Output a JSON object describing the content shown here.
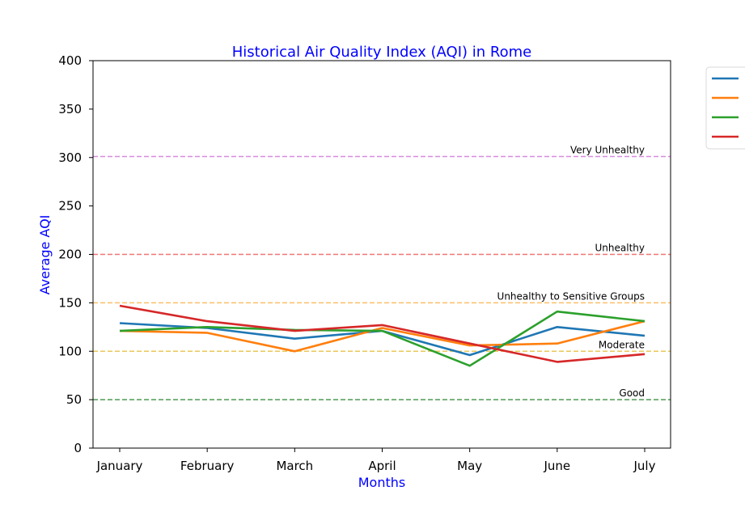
{
  "chart_data": {
    "type": "line",
    "title": "Historical Air Quality Index (AQI) in Rome",
    "xlabel": "Months",
    "ylabel": "Average AQI",
    "categories": [
      "January",
      "February",
      "March",
      "April",
      "May",
      "June",
      "July"
    ],
    "ylim": [
      0,
      400
    ],
    "yticks": [
      0,
      50,
      100,
      150,
      200,
      250,
      300,
      350,
      400
    ],
    "grid": false,
    "legend_position": "upper-right, outside plot",
    "text_color": "#0000ff",
    "series": [
      {
        "color": "#1f77b4",
        "values": [
          129,
          124,
          113,
          121,
          96,
          125,
          116
        ]
      },
      {
        "color": "#ff7f0e",
        "values": [
          121,
          119,
          100,
          124,
          106,
          108,
          131
        ]
      },
      {
        "color": "#2ca02c",
        "values": [
          121,
          125,
          122,
          121,
          85,
          141,
          131
        ]
      },
      {
        "color": "#d62728",
        "values": [
          147,
          131,
          121,
          127,
          108,
          89,
          97
        ]
      }
    ],
    "thresholds": [
      {
        "label": "Good",
        "value": 50,
        "color": "#4f9a55"
      },
      {
        "label": "Moderate",
        "value": 100,
        "color": "#e8c95a"
      },
      {
        "label": "Unhealthy to Sensitive Groups",
        "value": 150,
        "color": "#fbbf6a"
      },
      {
        "label": "Unhealthy",
        "value": 200,
        "color": "#f07575"
      },
      {
        "label": "Very Unhealthy",
        "value": 301,
        "color": "#d88be0"
      }
    ]
  }
}
